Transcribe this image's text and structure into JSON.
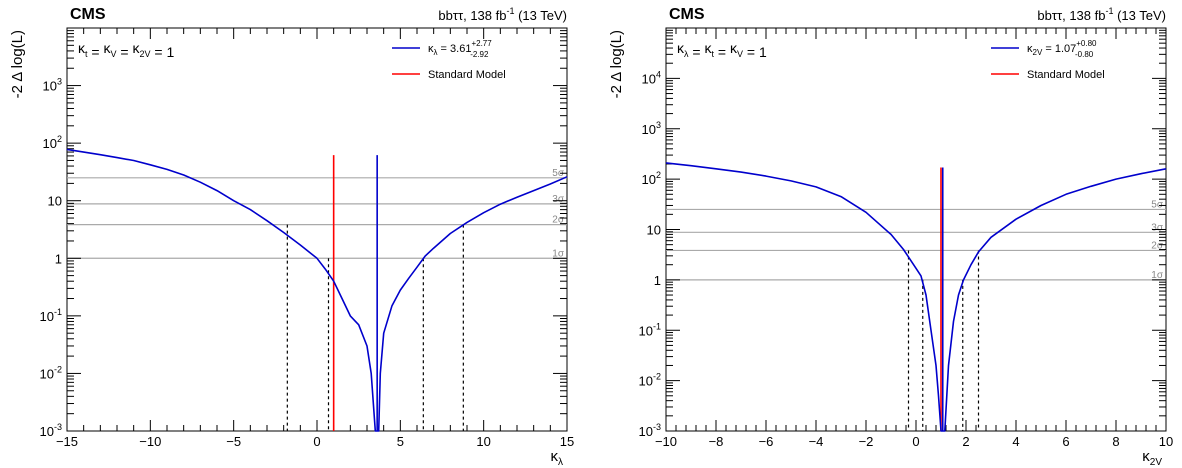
{
  "chart_data": [
    {
      "type": "line",
      "cms_label": "CMS",
      "lumi_label": {
        "pre": "bbττ, 138 fb",
        "sup": "-1",
        "post": " (13 TeV)"
      },
      "ylabel": "-2 Δ log(L)",
      "xlabel": {
        "base": "κ",
        "sub": "λ"
      },
      "condition_text": "κt = κV = κ2V = 1",
      "condition_parts": [
        [
          "κ",
          "t"
        ],
        [
          "κ",
          "V"
        ],
        [
          "κ",
          "2V"
        ]
      ],
      "condition_value": "1",
      "x_scale": "linear",
      "y_scale": "log",
      "xlim": [
        -15,
        15
      ],
      "ylim": [
        0.001,
        10000
      ],
      "x_ticks": [
        -15,
        -10,
        -5,
        0,
        5,
        10,
        15
      ],
      "x_tick_labels": [
        "−15",
        "−10",
        "−5",
        "0",
        "5",
        "10",
        "15"
      ],
      "y_ticks": [
        0.001,
        0.01,
        0.1,
        1,
        10,
        100,
        1000
      ],
      "y_tick_labels": [
        {
          "base": "10",
          "exp": "-3"
        },
        {
          "base": "10",
          "exp": "-2"
        },
        {
          "base": "10",
          "exp": "-1"
        },
        {
          "base": "1",
          "exp": ""
        },
        {
          "base": "10",
          "exp": ""
        },
        {
          "base": "10",
          "exp": "2"
        },
        {
          "base": "10",
          "exp": "3"
        }
      ],
      "legend": [
        {
          "kind": "fit",
          "color": "#0000cc",
          "label_base": "κ",
          "label_sub": "λ",
          "label_eq": " = 3.61",
          "up": "+2.77",
          "down": "-2.92"
        },
        {
          "kind": "sm",
          "color": "#ff0000",
          "label": "Standard Model"
        }
      ],
      "legend_position": "top-right",
      "sigma_lines": [
        {
          "label": "1σ",
          "y": 1
        },
        {
          "label": "2σ",
          "y": 3.84
        },
        {
          "label": "3σ",
          "y": 8.8
        },
        {
          "label": "5σ",
          "y": 25
        }
      ],
      "sm_value": 1,
      "best_fit": 3.61,
      "vertical_line_top": 62,
      "interval_1sigma": [
        0.69,
        6.38
      ],
      "interval_2sigma": [
        -1.78,
        8.78
      ],
      "series": [
        {
          "name": "κλ scan",
          "color": "#0000cc",
          "x": [
            -15,
            -14,
            -13,
            -12,
            -11,
            -10,
            -9,
            -8,
            -7,
            -6,
            -5,
            -4,
            -3,
            -2,
            -1,
            0,
            0.5,
            1,
            1.5,
            2,
            2.5,
            3,
            3.25,
            3.5,
            3.6,
            3.7,
            3.8,
            4,
            4.5,
            5,
            5.5,
            6,
            6.5,
            7,
            8,
            9,
            10,
            11,
            12,
            13,
            14,
            15
          ],
          "y": [
            78,
            70,
            63,
            56,
            50,
            42,
            35,
            28,
            21,
            15,
            10,
            7,
            4.5,
            2.8,
            1.7,
            1.0,
            0.65,
            0.4,
            0.2,
            0.1,
            0.07,
            0.03,
            0.01,
            0.001,
            0.001,
            0.001,
            0.01,
            0.05,
            0.15,
            0.28,
            0.45,
            0.7,
            1.1,
            1.5,
            2.7,
            4.2,
            6.2,
            8.7,
            11.5,
            15,
            19.5,
            26
          ]
        }
      ]
    },
    {
      "type": "line",
      "cms_label": "CMS",
      "lumi_label": {
        "pre": "bbττ, 138 fb",
        "sup": "-1",
        "post": " (13 TeV)"
      },
      "ylabel": "-2 Δ log(L)",
      "xlabel": {
        "base": "κ",
        "sub": "2V"
      },
      "condition_text": "κλ = κt = κV = 1",
      "condition_parts": [
        [
          "κ",
          "λ"
        ],
        [
          "κ",
          "t"
        ],
        [
          "κ",
          "V"
        ]
      ],
      "condition_value": "1",
      "x_scale": "linear",
      "y_scale": "log",
      "xlim": [
        -10,
        10
      ],
      "ylim": [
        0.001,
        100000
      ],
      "x_ticks": [
        -10,
        -8,
        -6,
        -4,
        -2,
        0,
        2,
        4,
        6,
        8,
        10
      ],
      "x_tick_labels": [
        "−10",
        "−8",
        "−6",
        "−4",
        "−2",
        "0",
        "2",
        "4",
        "6",
        "8",
        "10"
      ],
      "y_ticks": [
        0.001,
        0.01,
        0.1,
        1,
        10,
        100,
        1000,
        10000
      ],
      "y_tick_labels": [
        {
          "base": "10",
          "exp": "-3"
        },
        {
          "base": "10",
          "exp": "-2"
        },
        {
          "base": "10",
          "exp": "-1"
        },
        {
          "base": "1",
          "exp": ""
        },
        {
          "base": "10",
          "exp": ""
        },
        {
          "base": "10",
          "exp": "2"
        },
        {
          "base": "10",
          "exp": "3"
        },
        {
          "base": "10",
          "exp": "4"
        }
      ],
      "legend": [
        {
          "kind": "fit",
          "color": "#0000cc",
          "label_base": "κ",
          "label_sub": "2V",
          "label_eq": " = 1.07",
          "up": "+0.80",
          "down": "-0.80"
        },
        {
          "kind": "sm",
          "color": "#ff0000",
          "label": "Standard Model"
        }
      ],
      "legend_position": "top-right",
      "sigma_lines": [
        {
          "label": "1σ",
          "y": 1
        },
        {
          "label": "2σ",
          "y": 3.84
        },
        {
          "label": "3σ",
          "y": 8.8
        },
        {
          "label": "5σ",
          "y": 25
        }
      ],
      "sm_value": 1,
      "best_fit": 1.07,
      "vertical_line_top": 170,
      "interval_1sigma": [
        0.27,
        1.87
      ],
      "interval_2sigma": [
        -0.3,
        2.5
      ],
      "series": [
        {
          "name": "κ2V scan",
          "color": "#0000cc",
          "x": [
            -10,
            -9,
            -8,
            -7,
            -6,
            -5,
            -4,
            -3,
            -2,
            -1,
            -0.5,
            0,
            0.2,
            0.4,
            0.6,
            0.8,
            0.9,
            1.0,
            1.07,
            1.15,
            1.3,
            1.5,
            1.7,
            1.9,
            2.2,
            2.5,
            3,
            4,
            5,
            6,
            7,
            8,
            9,
            10
          ],
          "y": [
            210,
            185,
            160,
            138,
            115,
            92,
            70,
            45,
            22,
            8,
            4,
            1.7,
            1.2,
            0.5,
            0.1,
            0.02,
            0.005,
            0.001,
            0.001,
            0.001,
            0.02,
            0.15,
            0.5,
            1.0,
            2.0,
            3.6,
            7,
            16,
            30,
            50,
            72,
            100,
            128,
            160
          ]
        }
      ]
    }
  ]
}
